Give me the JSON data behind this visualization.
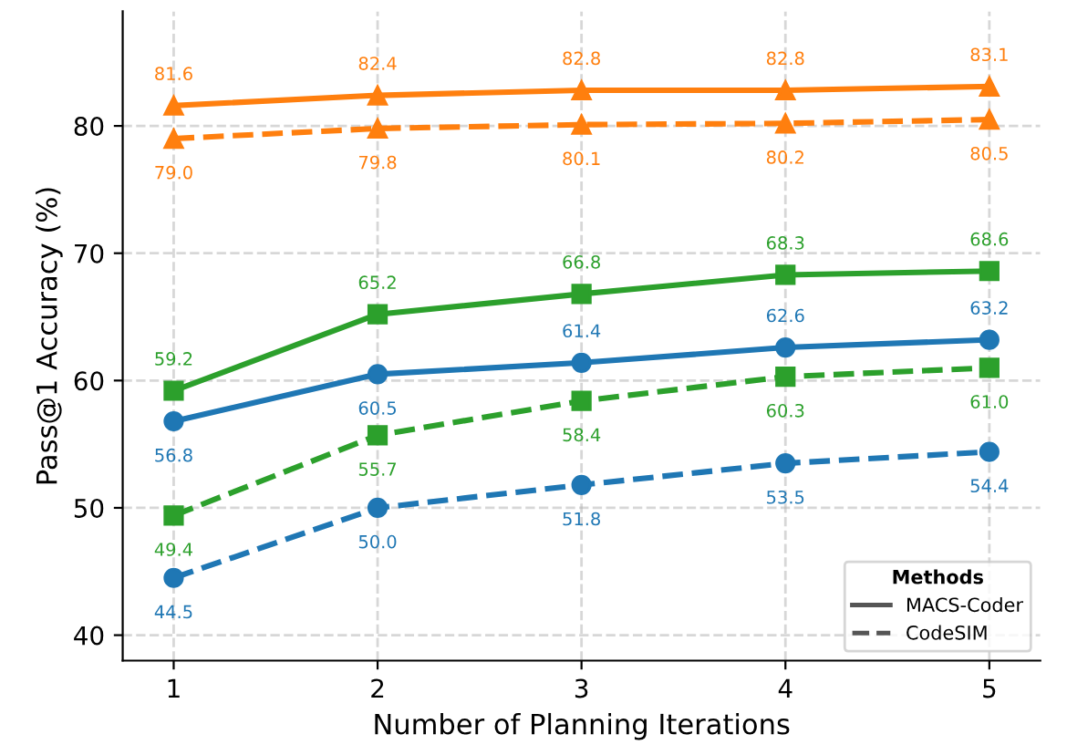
{
  "chart_data": {
    "type": "line",
    "xlabel": "Number of Planning Iterations",
    "ylabel": "Pass@1 Accuracy (%)",
    "x": [
      1,
      2,
      3,
      4,
      5
    ],
    "series": [
      {
        "color": "#1f77b4",
        "marker": "circle",
        "line_style": "solid",
        "values": [
          56.8,
          60.5,
          61.4,
          62.6,
          63.2
        ],
        "value_labels": [
          "56.8",
          "60.5",
          "61.4",
          "62.6",
          "63.2"
        ]
      },
      {
        "color": "#2ca02c",
        "marker": "square",
        "line_style": "solid",
        "values": [
          59.2,
          65.2,
          66.8,
          68.3,
          68.6
        ],
        "value_labels": [
          "59.2",
          "65.2",
          "66.8",
          "68.3",
          "68.6"
        ]
      },
      {
        "color": "#ff7f0e",
        "marker": "triangle",
        "line_style": "solid",
        "values": [
          81.6,
          82.4,
          82.8,
          82.8,
          83.1
        ],
        "value_labels": [
          "81.6",
          "82.4",
          "82.8",
          "82.8",
          "83.1"
        ]
      },
      {
        "color": "#1f77b4",
        "marker": "circle",
        "line_style": "dashed",
        "values": [
          44.5,
          50.0,
          51.8,
          53.5,
          54.4
        ],
        "value_labels": [
          "44.5",
          "50.0",
          "51.8",
          "53.5",
          "54.4"
        ]
      },
      {
        "color": "#2ca02c",
        "marker": "square",
        "line_style": "dashed",
        "values": [
          49.4,
          55.7,
          58.4,
          60.3,
          61.0
        ],
        "value_labels": [
          "49.4",
          "55.7",
          "58.4",
          "60.3",
          "61.0"
        ]
      },
      {
        "color": "#ff7f0e",
        "marker": "triangle",
        "line_style": "dashed",
        "values": [
          79.0,
          79.8,
          80.1,
          80.2,
          80.5
        ],
        "value_labels": [
          "79.0",
          "79.8",
          "80.1",
          "80.2",
          "80.5"
        ]
      }
    ],
    "xlim": [
      0.75,
      5.25
    ],
    "xticks": [
      1,
      2,
      3,
      4,
      5
    ],
    "ylim": [
      38,
      89
    ],
    "yticks": [
      40,
      50,
      60,
      70,
      80
    ],
    "grid": true,
    "legend_title": "Methods",
    "annotations": [
      "MACS-Coder",
      "CodeSIM"
    ]
  }
}
